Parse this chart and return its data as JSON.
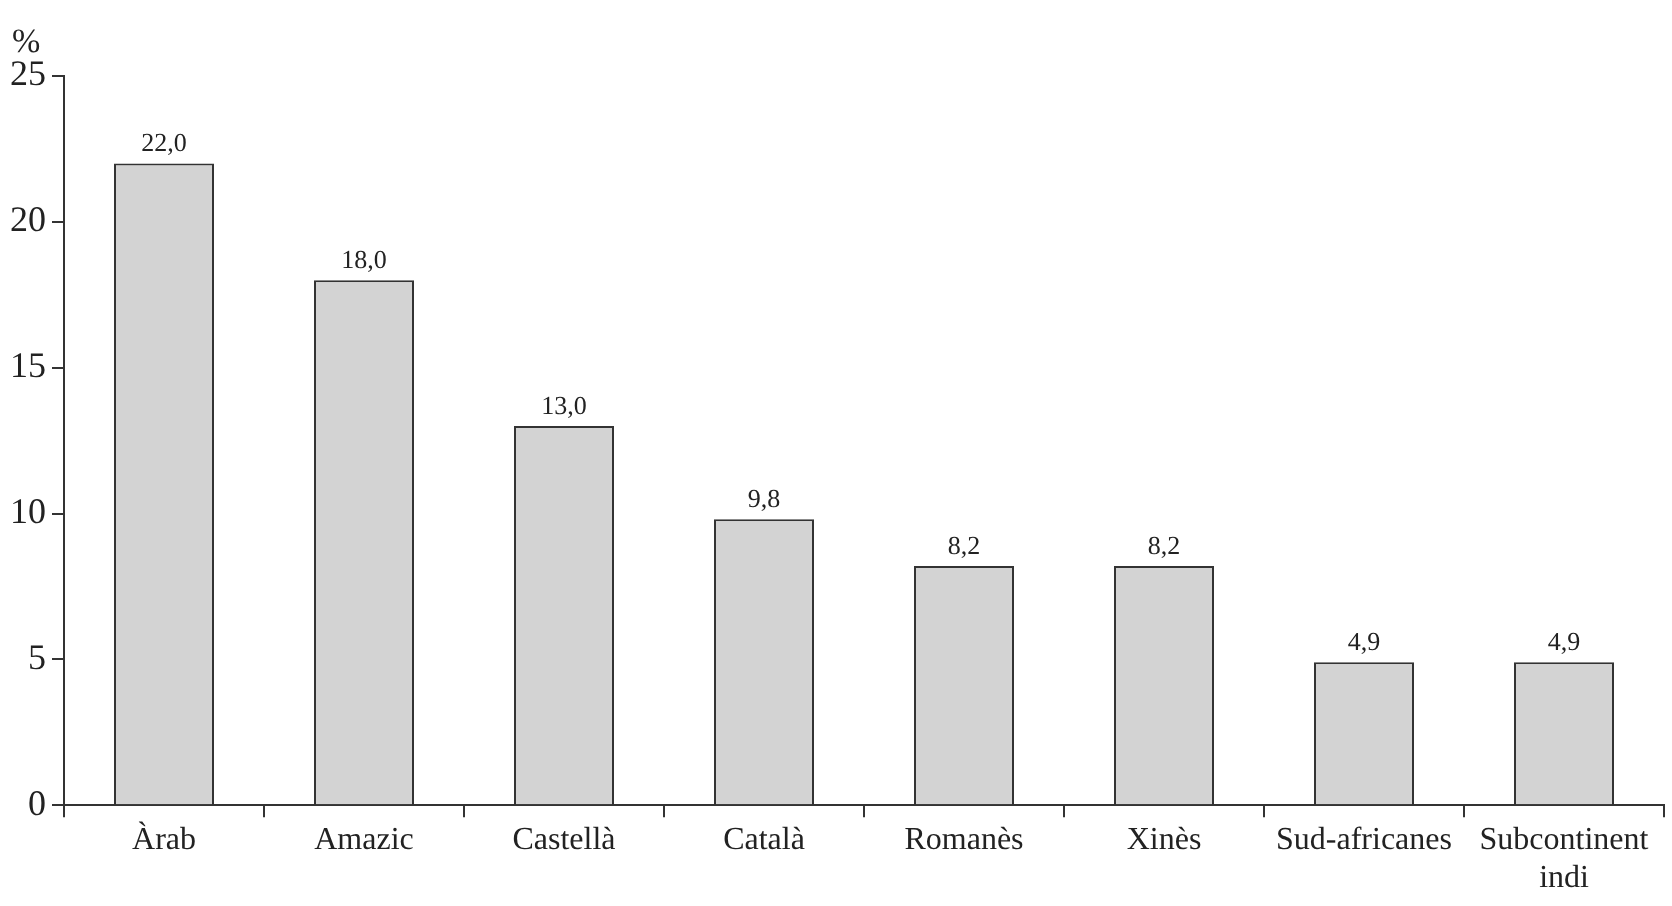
{
  "chart_data": {
    "type": "bar",
    "ylabel": "%",
    "categories": [
      "Àrab",
      "Amazic",
      "Castellà",
      "Català",
      "Romanès",
      "Xinès",
      "Sud-africanes",
      "Subcontinent indi"
    ],
    "values": [
      22.0,
      18.0,
      13.0,
      9.8,
      8.2,
      8.2,
      4.9,
      4.9
    ],
    "value_labels": [
      "22,0",
      "18,0",
      "13,0",
      "9,8",
      "8,2",
      "8,2",
      "4,9",
      "4,9"
    ],
    "color": "#d3d3d3",
    "ylim": [
      0,
      25
    ],
    "yticks": [
      0,
      5,
      10,
      15,
      20,
      25
    ],
    "grid": false,
    "legend": false
  }
}
